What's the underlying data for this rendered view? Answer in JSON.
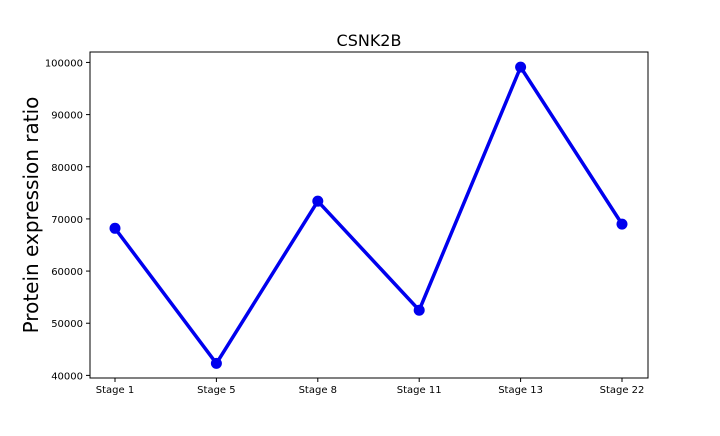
{
  "chart_data": {
    "type": "line",
    "title": "CSNK2B",
    "xlabel": "",
    "ylabel": "Protein expression ratio",
    "categories": [
      "Stage 1",
      "Stage 5",
      "Stage 8",
      "Stage 11",
      "Stage 13",
      "Stage 22"
    ],
    "series": [
      {
        "values": [
          68200,
          42300,
          73400,
          52500,
          99100,
          69000
        ],
        "color": "#0000ee"
      }
    ],
    "yticks": [
      40000,
      50000,
      60000,
      70000,
      80000,
      90000,
      100000
    ],
    "ylim": [
      39500,
      102000
    ],
    "grid": false,
    "legend": "none"
  }
}
